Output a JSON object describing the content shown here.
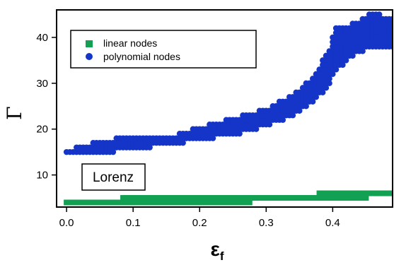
{
  "chart_data": {
    "type": "scatter",
    "xlabel": "ε",
    "xlabel_subscript": "f",
    "ylabel": "Γ",
    "xlim": [
      -0.015,
      0.49
    ],
    "ylim": [
      3,
      46
    ],
    "x_ticks": [
      0.0,
      0.1,
      0.2,
      0.3,
      0.4
    ],
    "x_tick_labels": [
      "0.0",
      "0.1",
      "0.2",
      "0.3",
      "0.4"
    ],
    "y_ticks": [
      10,
      20,
      30,
      40
    ],
    "y_tick_labels": [
      "10",
      "20",
      "30",
      "40"
    ],
    "annotation": "Lorenz",
    "legend_position": "top-left",
    "grid": false,
    "series": [
      {
        "name": "linear nodes",
        "marker": "square",
        "color": "#12a052",
        "ranges": [
          {
            "x": 0.0,
            "ymin": 4,
            "ymax": 4
          },
          {
            "x": 0.165,
            "ymin": 4,
            "ymax": 5
          },
          {
            "x": 0.235,
            "ymin": 3.8,
            "ymax": 5
          },
          {
            "x": 0.28,
            "ymin": 4.5,
            "ymax": 5
          },
          {
            "x": 0.375,
            "ymin": 5,
            "ymax": 5
          },
          {
            "x": 0.385,
            "ymin": 5,
            "ymax": 6
          },
          {
            "x": 0.42,
            "ymin": 5,
            "ymax": 6
          },
          {
            "x": 0.49,
            "ymin": 6,
            "ymax": 6
          }
        ]
      },
      {
        "name": "polynomial nodes",
        "marker": "circle",
        "color": "#1535c8",
        "ranges": [
          {
            "x": 0.0,
            "ymin": 15,
            "ymax": 15
          },
          {
            "x": 0.05,
            "ymin": 15,
            "ymax": 17
          },
          {
            "x": 0.1,
            "ymin": 16,
            "ymax": 18
          },
          {
            "x": 0.16,
            "ymin": 17,
            "ymax": 18
          },
          {
            "x": 0.2,
            "ymin": 18,
            "ymax": 20
          },
          {
            "x": 0.25,
            "ymin": 19,
            "ymax": 22
          },
          {
            "x": 0.3,
            "ymin": 21,
            "ymax": 24
          },
          {
            "x": 0.34,
            "ymin": 23,
            "ymax": 27
          },
          {
            "x": 0.37,
            "ymin": 26,
            "ymax": 31
          },
          {
            "x": 0.395,
            "ymin": 30,
            "ymax": 37
          },
          {
            "x": 0.405,
            "ymin": 33,
            "ymax": 42
          },
          {
            "x": 0.42,
            "ymin": 35,
            "ymax": 42
          },
          {
            "x": 0.44,
            "ymin": 37,
            "ymax": 43
          },
          {
            "x": 0.46,
            "ymin": 38,
            "ymax": 45
          },
          {
            "x": 0.49,
            "ymin": 38,
            "ymax": 44
          }
        ]
      }
    ]
  }
}
